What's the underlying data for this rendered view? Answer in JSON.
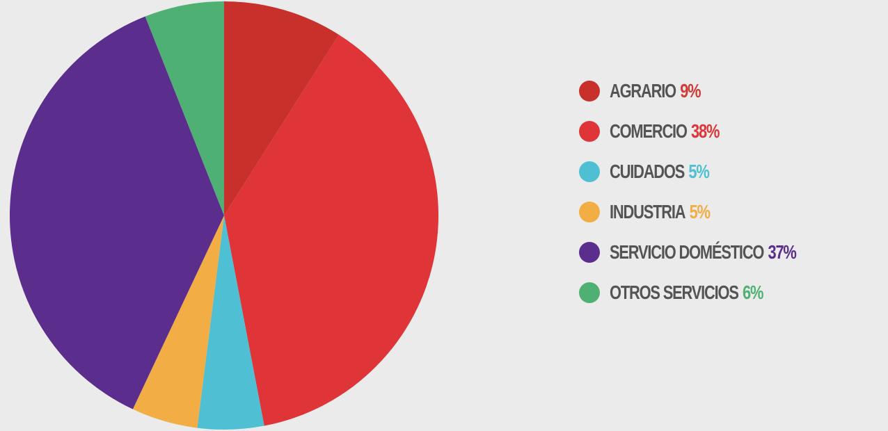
{
  "chart_data": {
    "type": "pie",
    "title": "",
    "legend_position": "right",
    "slices": [
      {
        "label": "AGRARIO",
        "value": 9,
        "value_label": "9%",
        "color": "#c8302b",
        "label_color": "#d23a36"
      },
      {
        "label": "COMERCIO",
        "value": 38,
        "value_label": "38%",
        "color": "#df3438",
        "label_color": "#df3438"
      },
      {
        "label": "CUIDADOS",
        "value": 5,
        "value_label": "5%",
        "color": "#4fc0d4",
        "label_color": "#4fc0d4"
      },
      {
        "label": "INDUSTRIA",
        "value": 5,
        "value_label": "5%",
        "color": "#f2ad45",
        "label_color": "#f2ad45"
      },
      {
        "label": "SERVICIO DOMÉSTICO",
        "value": 37,
        "value_label": "37%",
        "color": "#5b2d8c",
        "label_color": "#5b2d8c"
      },
      {
        "label": "OTROS SERVICIOS",
        "value": 6,
        "value_label": "6%",
        "color": "#4fb074",
        "label_color": "#4fb074"
      }
    ]
  }
}
